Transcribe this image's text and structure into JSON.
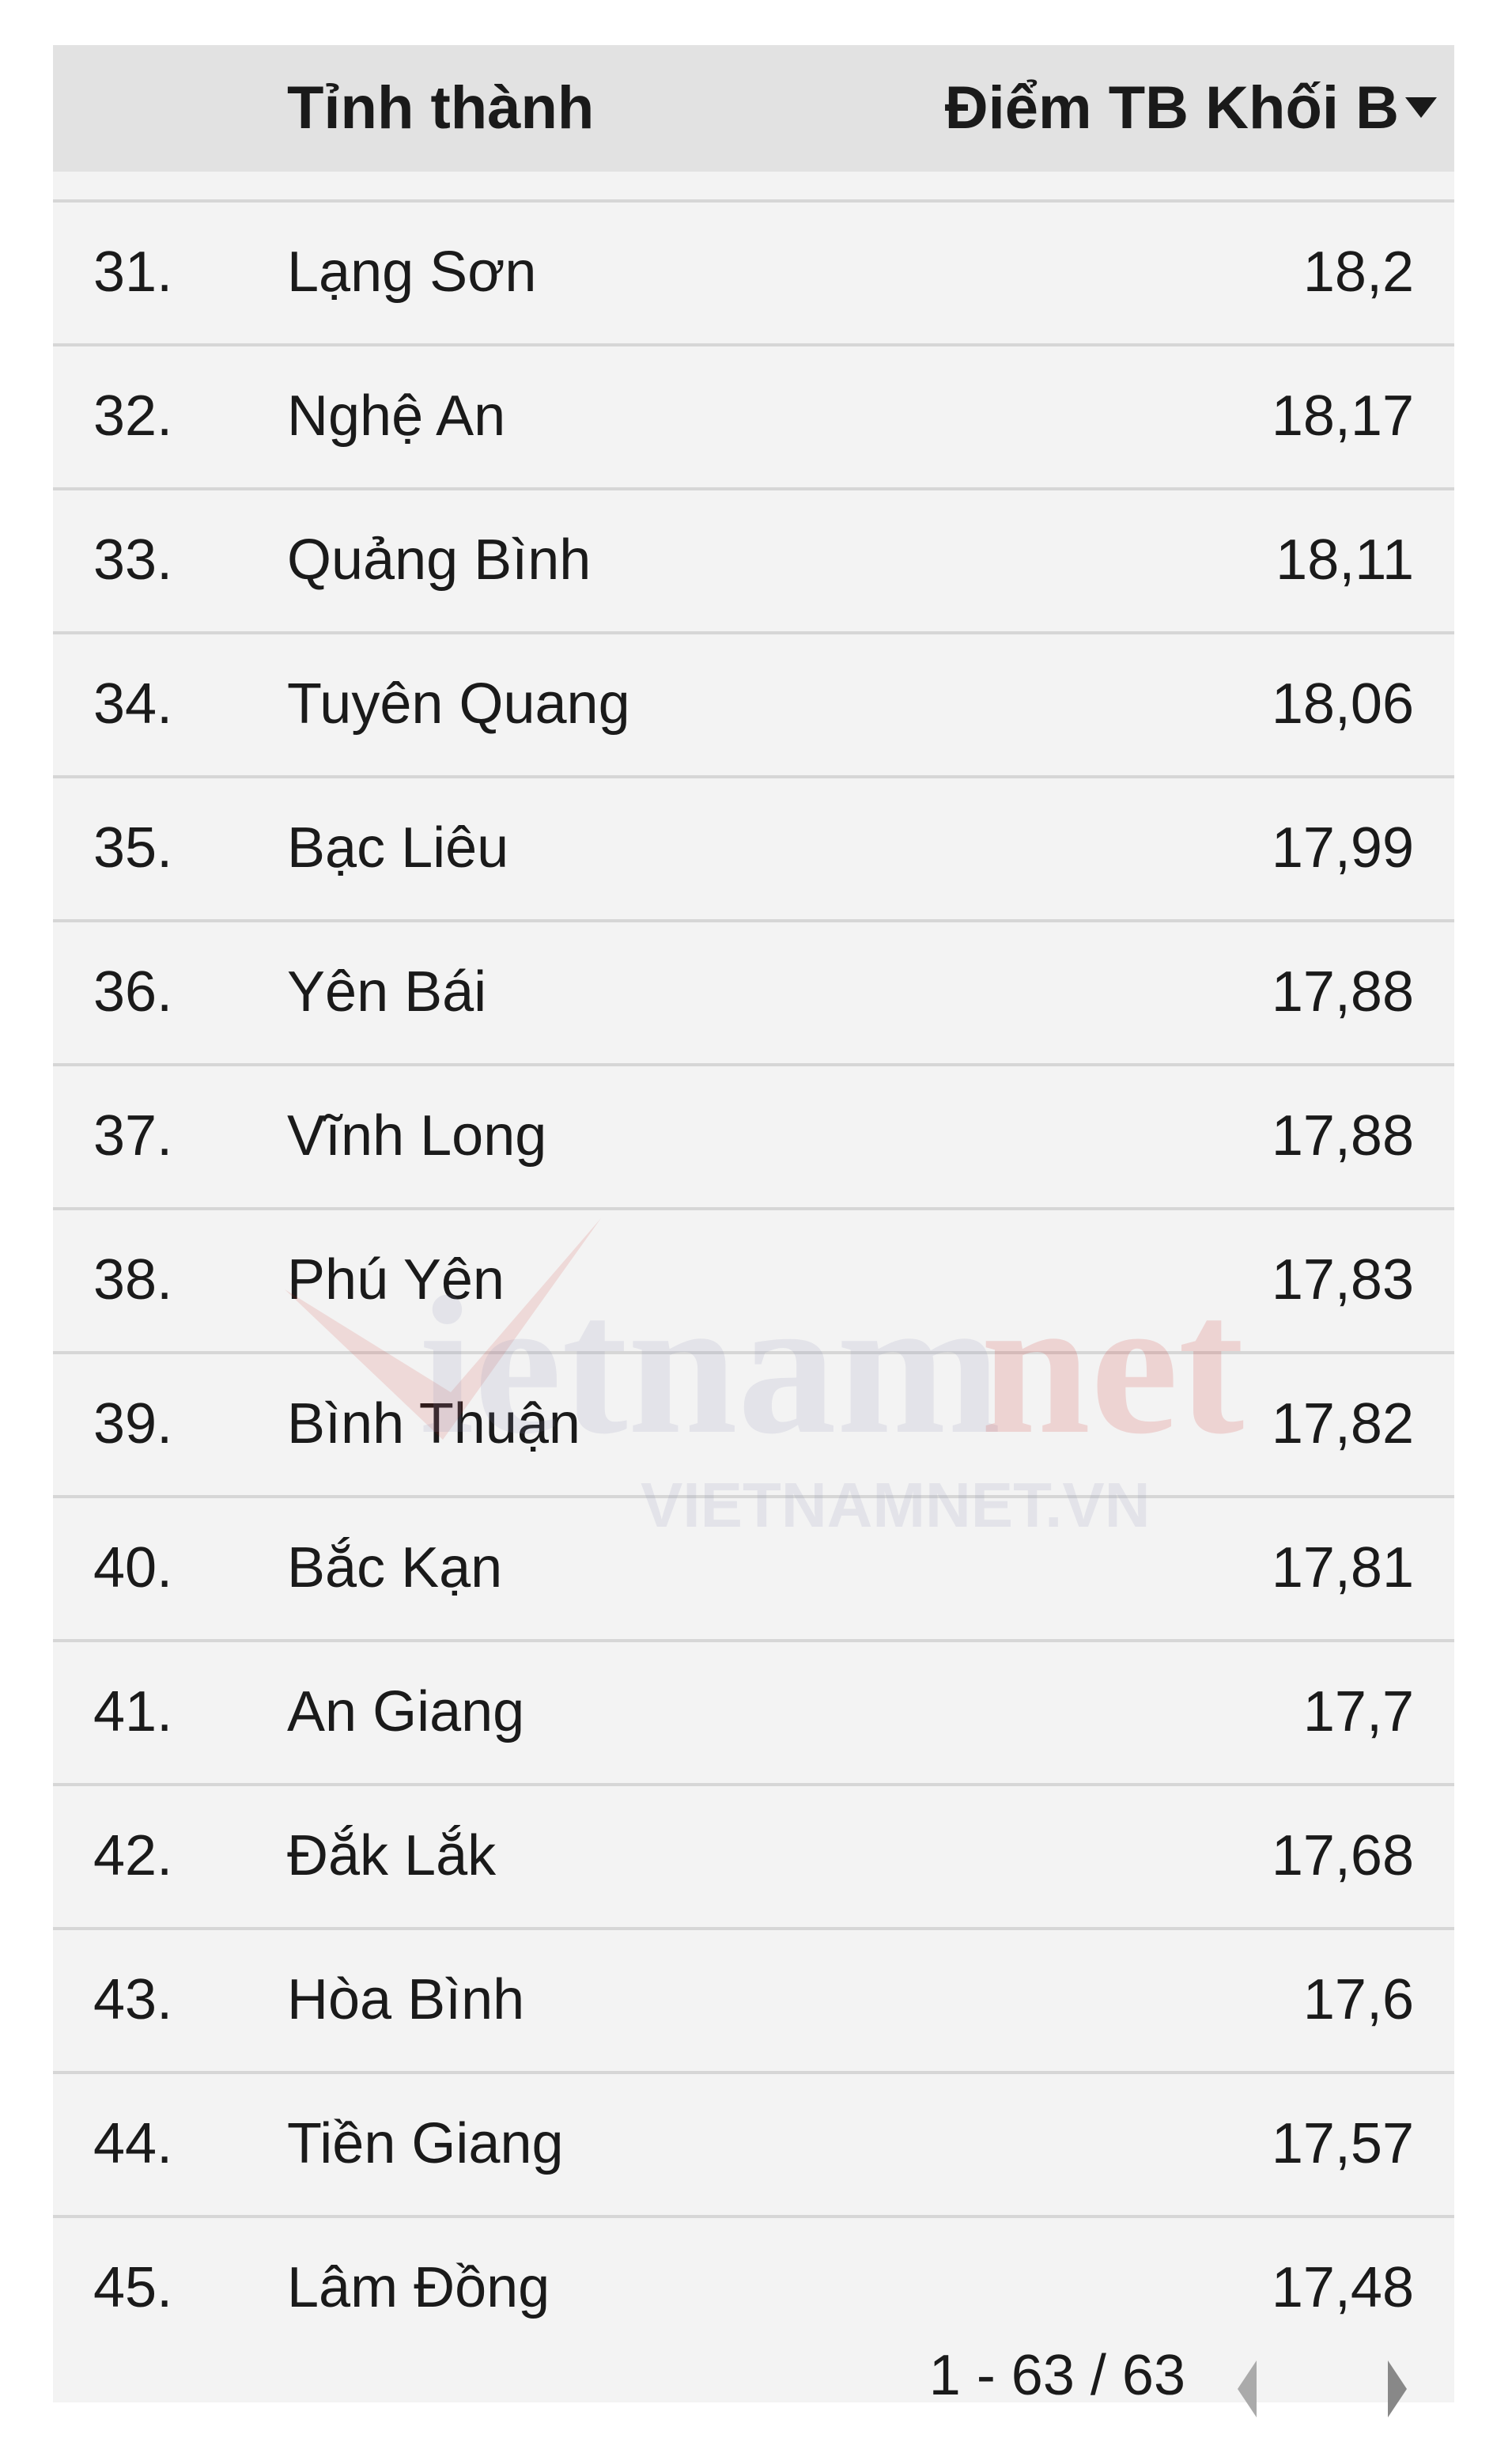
{
  "table": {
    "headers": {
      "rank": "",
      "province": "Tỉnh thành",
      "score": "Điểm TB Khối B"
    },
    "sort_icon": "triangle-down-icon",
    "rows": [
      {
        "rank": "31.",
        "province": "Lạng Sơn",
        "score": "18,2"
      },
      {
        "rank": "32.",
        "province": "Nghệ An",
        "score": "18,17"
      },
      {
        "rank": "33.",
        "province": "Quảng Bình",
        "score": "18,11"
      },
      {
        "rank": "34.",
        "province": "Tuyên Quang",
        "score": "18,06"
      },
      {
        "rank": "35.",
        "province": "Bạc Liêu",
        "score": "17,99"
      },
      {
        "rank": "36.",
        "province": "Yên Bái",
        "score": "17,88"
      },
      {
        "rank": "37.",
        "province": "Vĩnh Long",
        "score": "17,88"
      },
      {
        "rank": "38.",
        "province": "Phú Yên",
        "score": "17,83"
      },
      {
        "rank": "39.",
        "province": "Bình Thuận",
        "score": "17,82"
      },
      {
        "rank": "40.",
        "province": "Bắc Kạn",
        "score": "17,81"
      },
      {
        "rank": "41.",
        "province": "An Giang",
        "score": "17,7"
      },
      {
        "rank": "42.",
        "province": "Đắk Lắk",
        "score": "17,68"
      },
      {
        "rank": "43.",
        "province": "Hòa Bình",
        "score": "17,6"
      },
      {
        "rank": "44.",
        "province": "Tiền Giang",
        "score": "17,57"
      },
      {
        "rank": "45.",
        "province": "Lâm Đồng",
        "score": "17,48"
      }
    ]
  },
  "pagination": {
    "text": "1 - 63 / 63"
  },
  "watermark": {
    "logo": "vietnamnet",
    "url": "VIETNAMNET.VN",
    "accent": "#d0211c"
  }
}
